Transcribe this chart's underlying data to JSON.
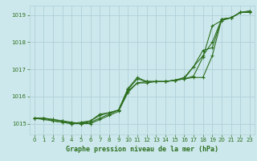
{
  "title": "Graphe pression niveau de la mer (hPa)",
  "bg_color": "#cce8ec",
  "grid_color": "#b0d0d8",
  "line_color": "#2d6e1e",
  "xlim": [
    -0.5,
    23.5
  ],
  "ylim": [
    1014.6,
    1019.35
  ],
  "yticks": [
    1015,
    1016,
    1017,
    1018,
    1019
  ],
  "xticks": [
    0,
    1,
    2,
    3,
    4,
    5,
    6,
    7,
    8,
    9,
    10,
    11,
    12,
    13,
    14,
    15,
    16,
    17,
    18,
    19,
    20,
    21,
    22,
    23
  ],
  "series": [
    [
      1015.2,
      1015.2,
      1015.15,
      1015.1,
      1015.05,
      1015.0,
      1015.05,
      1015.2,
      1015.35,
      1015.5,
      1016.2,
      1016.5,
      1016.55,
      1016.55,
      1016.55,
      1016.6,
      1016.65,
      1016.7,
      1016.7,
      1017.5,
      1018.85,
      1018.9,
      1019.1,
      1019.15
    ],
    [
      1015.2,
      1015.2,
      1015.1,
      1015.05,
      1015.0,
      1015.0,
      1015.0,
      1015.15,
      1015.3,
      1015.45,
      1016.15,
      1016.5,
      1016.5,
      1016.55,
      1016.55,
      1016.6,
      1016.65,
      1016.75,
      1017.45,
      1018.6,
      1018.8,
      1018.9,
      1019.1,
      1019.15
    ],
    [
      1015.2,
      1015.15,
      1015.1,
      1015.05,
      1015.0,
      1015.05,
      1015.1,
      1015.35,
      1015.4,
      1015.5,
      1016.25,
      1016.65,
      1016.55,
      1016.55,
      1016.55,
      1016.6,
      1016.65,
      1017.1,
      1017.5,
      1018.0,
      1018.85,
      1018.9,
      1019.1,
      1019.1
    ],
    [
      1015.2,
      1015.2,
      1015.15,
      1015.1,
      1015.0,
      1015.0,
      1015.1,
      1015.3,
      1015.4,
      1015.5,
      1016.3,
      1016.7,
      1016.55,
      1016.55,
      1016.55,
      1016.6,
      1016.7,
      1017.1,
      1017.7,
      1017.8,
      1018.85,
      1018.9,
      1019.1,
      1019.1
    ]
  ]
}
